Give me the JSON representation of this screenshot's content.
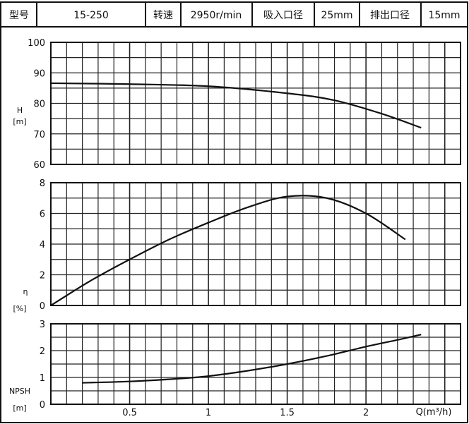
{
  "header": {
    "model_label": "型号",
    "model_value": "15-250",
    "speed_label": "转速",
    "speed_value": "2950r/min",
    "suction_label": "吸入口径",
    "suction_value": "25mm",
    "discharge_label": "排出口径",
    "discharge_value": "15mm"
  },
  "chart_data": [
    {
      "type": "line",
      "ylabel": "H",
      "yunit": "[m]",
      "ylim": [
        60,
        100
      ],
      "yticks": [
        "60",
        "70",
        "80",
        "90",
        "100"
      ],
      "xlim": [
        0,
        2.6
      ],
      "grid": true,
      "series": [
        {
          "x": [
            0.0,
            0.5,
            1.0,
            1.5,
            1.8,
            2.1,
            2.35
          ],
          "y": [
            86.6,
            86.3,
            85.6,
            83.3,
            81.0,
            76.6,
            72.0
          ]
        }
      ]
    },
    {
      "type": "line",
      "ylabel": "η",
      "yunit": "[%]",
      "ylim": [
        0,
        8
      ],
      "yticks": [
        "0",
        "2",
        "4",
        "6",
        "8"
      ],
      "xlim": [
        0,
        2.6
      ],
      "grid": true,
      "series": [
        {
          "x": [
            0.0,
            0.25,
            0.5,
            0.75,
            1.0,
            1.25,
            1.5,
            1.75,
            2.0,
            2.25
          ],
          "y": [
            0.0,
            1.6,
            3.0,
            4.3,
            5.4,
            6.4,
            7.1,
            7.0,
            6.0,
            4.3
          ]
        }
      ]
    },
    {
      "type": "line",
      "ylabel": "NPSH",
      "yunit": "[m]",
      "ylim": [
        0,
        3
      ],
      "yticks": [
        "0",
        "1",
        "2",
        "3"
      ],
      "xlabel": "Q(m³/h)",
      "xticks": [
        "0.5",
        "1",
        "1.5",
        "2"
      ],
      "xlim": [
        0,
        2.6
      ],
      "grid": true,
      "series": [
        {
          "x": [
            0.2,
            0.5,
            0.8,
            1.0,
            1.25,
            1.5,
            1.75,
            2.0,
            2.2,
            2.35
          ],
          "y": [
            0.8,
            0.85,
            0.95,
            1.05,
            1.25,
            1.5,
            1.8,
            2.15,
            2.4,
            2.6
          ]
        }
      ]
    }
  ]
}
